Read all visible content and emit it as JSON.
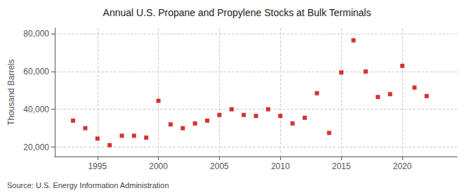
{
  "chart_data": {
    "type": "scatter",
    "title": "Annual U.S. Propane and Propylene Stocks at Bulk Terminals",
    "ylabel": "Thousand Barrels",
    "annotation": "Source: U.S. Energy Information Administration",
    "x": [
      1993,
      1994,
      1995,
      1996,
      1997,
      1998,
      1999,
      2000,
      2001,
      2002,
      2003,
      2004,
      2005,
      2006,
      2007,
      2008,
      2009,
      2010,
      2011,
      2012,
      2013,
      2014,
      2015,
      2016,
      2017,
      2018,
      2019,
      2020,
      2021,
      2022
    ],
    "values": [
      34000,
      30000,
      24500,
      21000,
      26000,
      26000,
      25000,
      44500,
      32000,
      30000,
      32500,
      34000,
      37000,
      40000,
      37000,
      36500,
      40000,
      36500,
      32500,
      35500,
      48500,
      27500,
      59500,
      76500,
      60000,
      46500,
      48000,
      63000,
      51500,
      47000
    ],
    "color": "#CC0000",
    "marker": "square",
    "xlim": [
      1991.5,
      2024.5
    ],
    "ylim": [
      15000,
      83000
    ],
    "xticks": [
      1995,
      2000,
      2005,
      2010,
      2015,
      2020
    ],
    "yticks": [
      {
        "value": 20000,
        "label": "20,000"
      },
      {
        "value": 40000,
        "label": "40,000"
      },
      {
        "value": 60000,
        "label": "60,000"
      },
      {
        "value": 80000,
        "label": "80,000"
      }
    ],
    "grid": true
  }
}
